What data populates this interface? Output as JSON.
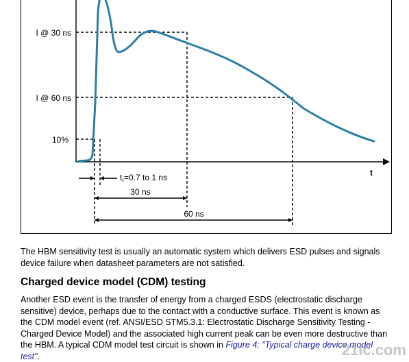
{
  "figure": {
    "y_labels": {
      "i30": "I @ 30 ns",
      "i60": "I @ 60 ns",
      "p10": "10%"
    },
    "t_axis": "t",
    "tr_prefix": "t",
    "tr_sub": "r",
    "tr_value": "=0.7 to 1 ns",
    "dim_30": "30 ns",
    "dim_60": "60 ns",
    "curve_color": "#2b7fa6"
  },
  "para1": "The HBM sensitivity test is usually an automatic system which delivers ESD pulses and signals device failure when datasheet parameters are not satisfied.",
  "heading": "Charged device model (CDM) testing",
  "para2": {
    "text": "Another ESD event is the transfer of energy from a charged ESDS (electrostatic discharge sensitive) device, perhaps due to the contact with a conductive surface. This event is known as the CDM model event (ref. ANSI/ESD STM5.3.1: Electrostatic Discharge Sensitivity Testing - Charged Device Model) and the associated high current peak can be even more destructive than the HBM. A typical CDM model test circuit is shown in ",
    "link": "Figure 4: \"Typical charge device model test\"",
    "end": "."
  },
  "watermark": "21ic.com"
}
